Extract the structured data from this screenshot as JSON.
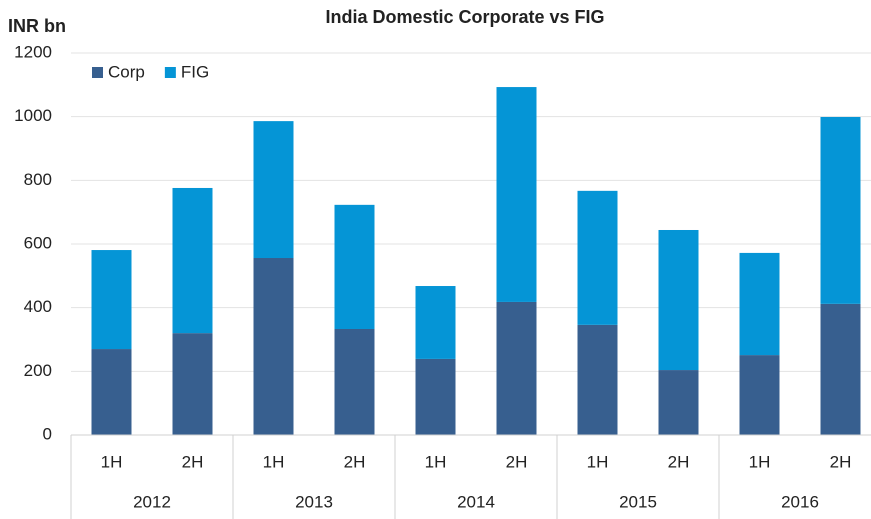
{
  "chart_data": {
    "type": "stacked_bar",
    "title": "India Domestic Corporate vs FIG",
    "y_label": "INR bn",
    "categories": [
      "1H",
      "2H",
      "1H",
      "2H",
      "1H",
      "2H",
      "1H",
      "2H",
      "1H",
      "2H"
    ],
    "groups": [
      "2012",
      "2013",
      "2014",
      "2015",
      "2016"
    ],
    "series": [
      {
        "name": "Corp",
        "color": "#375f8f",
        "values": [
          270,
          320,
          556,
          333,
          239,
          418,
          346,
          204,
          251,
          412
        ]
      },
      {
        "name": "FIG",
        "color": "#0595d6",
        "values": [
          311,
          456,
          430,
          390,
          229,
          675,
          421,
          440,
          321,
          587
        ]
      }
    ],
    "ylim": [
      0,
      1200
    ],
    "yticks": [
      0,
      200,
      400,
      600,
      800,
      1000,
      1200
    ],
    "grid": true,
    "legend": "top-left"
  }
}
